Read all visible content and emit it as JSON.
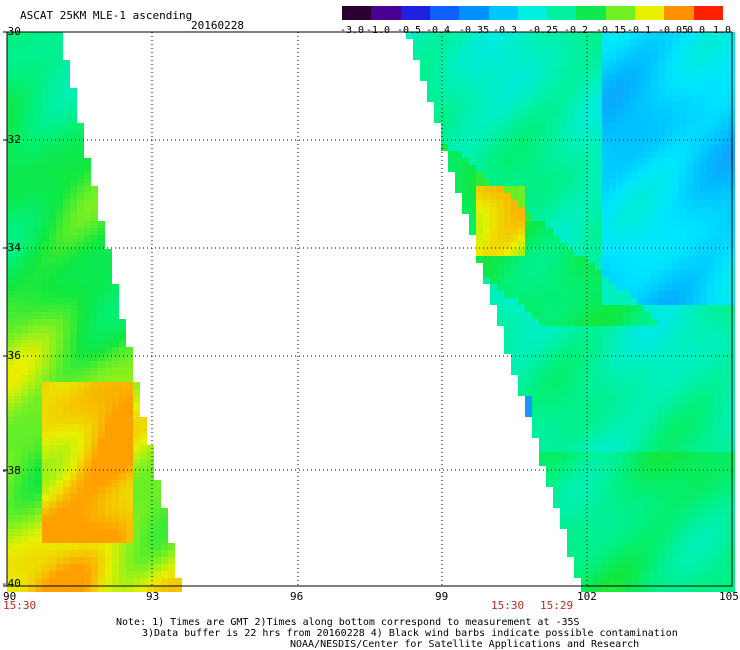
{
  "header": {
    "title": "ASCAT 25KM MLE-1 ascending",
    "date": "20160228"
  },
  "colorbar": {
    "labels": [
      "-3.0",
      "-1.0",
      "-0.5",
      "-0.4",
      "-0.35",
      "-0.3",
      "-0.25",
      "-0.2",
      "-0.15",
      "-0.1",
      "-0.05",
      "0.0",
      "1.0"
    ],
    "colors": [
      "#2a0030",
      "#4a0090",
      "#2020e0",
      "#1060ff",
      "#0090ff",
      "#00c8ff",
      "#00f0e0",
      "#00f0a0",
      "#10e850",
      "#70f020",
      "#e8f000",
      "#ff9000",
      "#ff2000"
    ]
  },
  "axes": {
    "lat_labels": [
      "-30",
      "-32",
      "-34",
      "-36",
      "-38",
      "-40"
    ],
    "lon_labels": [
      "90",
      "93",
      "96",
      "99",
      "102",
      "105"
    ]
  },
  "times": {
    "left": "15:30",
    "mid1": "15:30",
    "mid2": "15:29"
  },
  "notes": {
    "line1": "Note: 1) Times are GMT 2)Times along bottom correspond to measurement at -35S",
    "line2": "3)Data buffer is 22 hrs from 20160228 4) Black wind barbs indicate possible contamination",
    "line3": "NOAA/NESDIS/Center for Satellite Applications and Research"
  }
}
